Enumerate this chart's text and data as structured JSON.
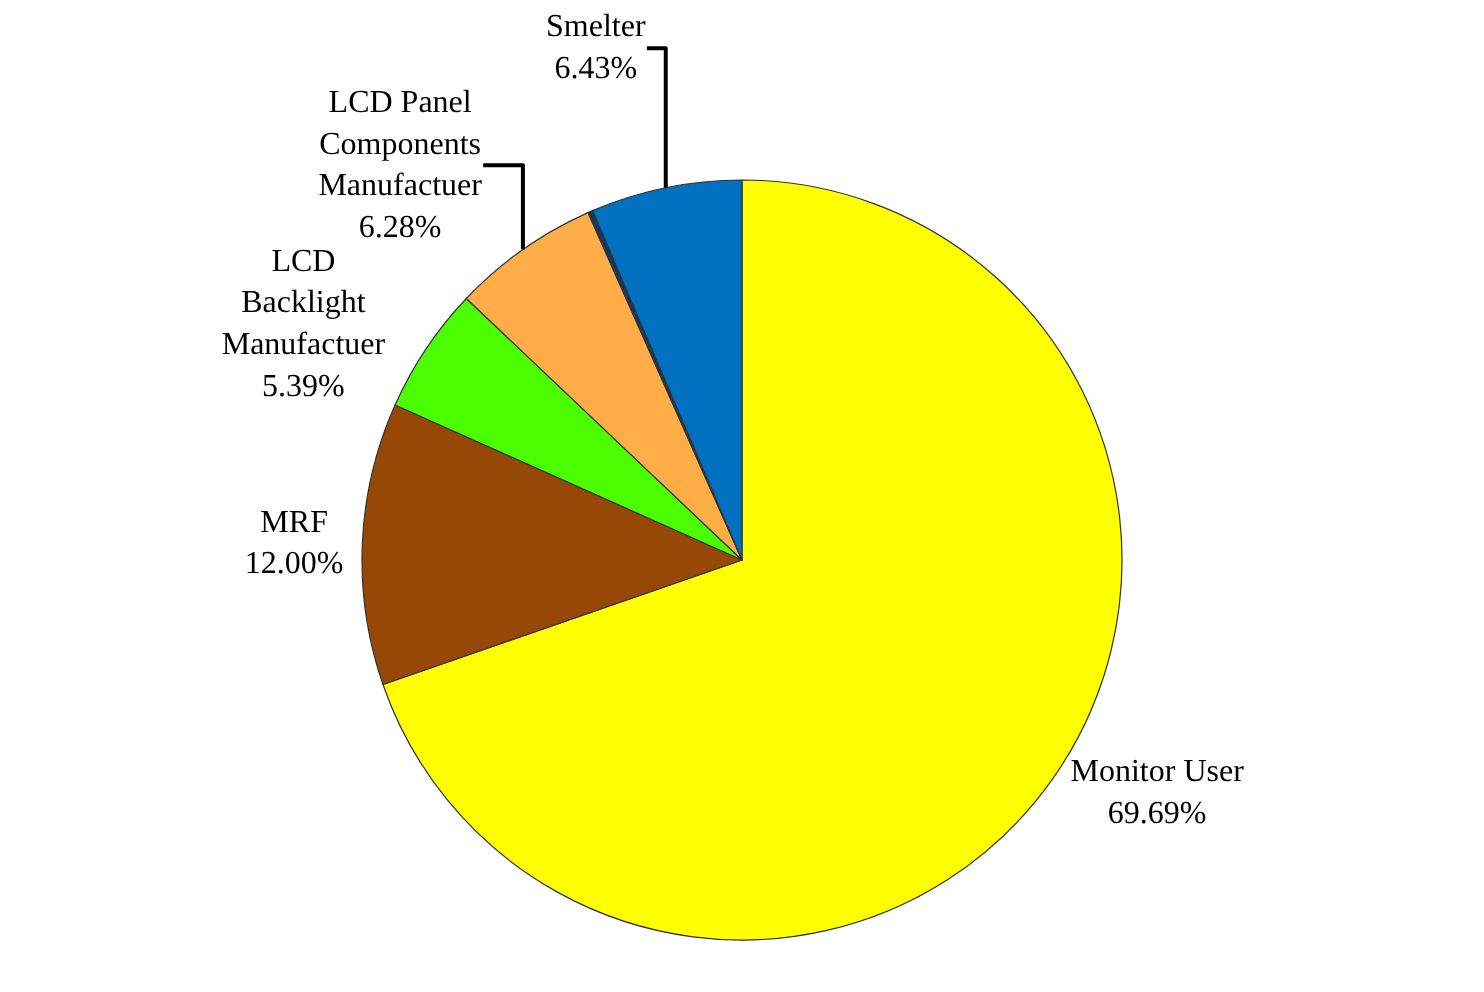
{
  "chart_data": {
    "type": "pie",
    "categories": [
      "Monitor User",
      "MRF",
      "LCD Backlight Manufactuer",
      "LCD Panel Components Manufactuer",
      null,
      "Smelter"
    ],
    "values": [
      69.69,
      12.0,
      5.39,
      6.28,
      0.21,
      6.43
    ],
    "value_labels": [
      "69.69%",
      "12.00%",
      "5.39%",
      "6.28%",
      null,
      "6.43%"
    ],
    "colors": [
      "#ffff00",
      "#974806",
      "#4cff00",
      "#ffad47",
      "#17375e",
      "#0070c0"
    ]
  }
}
